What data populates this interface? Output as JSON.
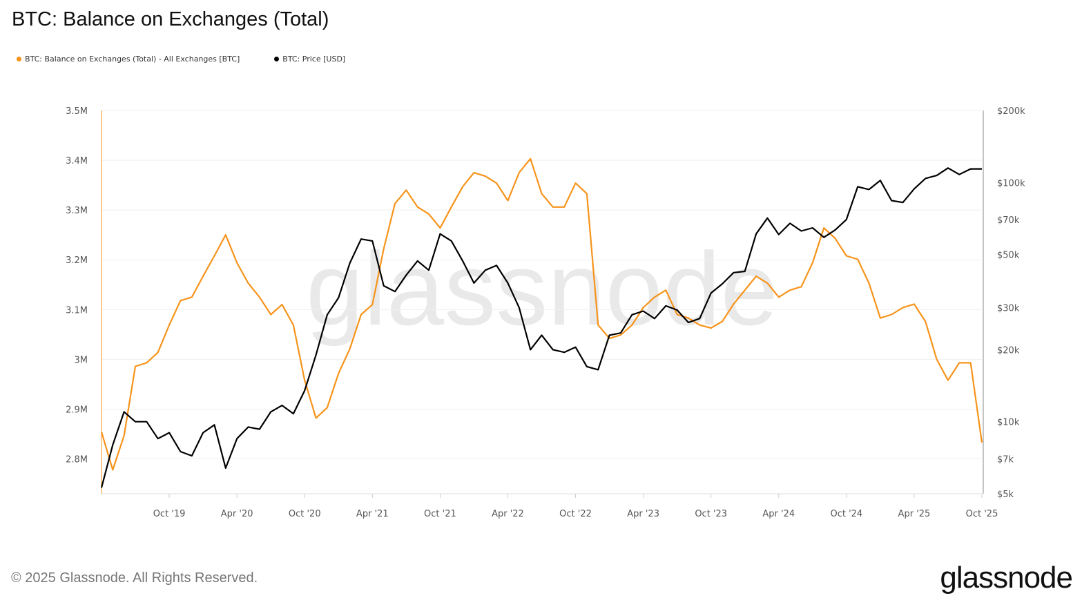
{
  "chart_data": {
    "type": "line",
    "title": "BTC: Balance on Exchanges (Total)",
    "grid": true,
    "legend_placement": "top-left",
    "x": [
      "2019-04",
      "2019-05",
      "2019-06",
      "2019-07",
      "2019-08",
      "2019-09",
      "2019-10",
      "2019-11",
      "2019-12",
      "2020-01",
      "2020-02",
      "2020-03",
      "2020-04",
      "2020-05",
      "2020-06",
      "2020-07",
      "2020-08",
      "2020-09",
      "2020-10",
      "2020-11",
      "2020-12",
      "2021-01",
      "2021-02",
      "2021-03",
      "2021-04",
      "2021-05",
      "2021-06",
      "2021-07",
      "2021-08",
      "2021-09",
      "2021-10",
      "2021-11",
      "2021-12",
      "2022-01",
      "2022-02",
      "2022-03",
      "2022-04",
      "2022-05",
      "2022-06",
      "2022-07",
      "2022-08",
      "2022-09",
      "2022-10",
      "2022-11",
      "2022-12",
      "2023-01",
      "2023-02",
      "2023-03",
      "2023-04",
      "2023-05",
      "2023-06",
      "2023-07",
      "2023-08",
      "2023-09",
      "2023-10",
      "2023-11",
      "2023-12",
      "2024-01",
      "2024-02",
      "2024-03",
      "2024-04",
      "2024-05",
      "2024-06",
      "2024-07",
      "2024-08",
      "2024-09",
      "2024-10",
      "2024-11",
      "2024-12",
      "2025-01",
      "2025-02",
      "2025-03",
      "2025-04",
      "2025-05",
      "2025-06",
      "2025-07",
      "2025-08",
      "2025-09",
      "2025-10"
    ],
    "x_tick_labels": [
      "Oct '19",
      "Apr '20",
      "Oct '20",
      "Apr '21",
      "Oct '21",
      "Apr '22",
      "Oct '22",
      "Apr '23",
      "Oct '23",
      "Apr '24",
      "Oct '24",
      "Apr '25",
      "Oct '25"
    ],
    "x_tick_dates": [
      "2019-10",
      "2020-04",
      "2020-10",
      "2021-04",
      "2021-10",
      "2022-04",
      "2022-10",
      "2023-04",
      "2023-10",
      "2024-04",
      "2024-10",
      "2025-04",
      "2025-10"
    ],
    "y_left": {
      "scale": "linear",
      "range": [
        2730000,
        3500000
      ],
      "ticks": [
        3500000,
        3400000,
        3300000,
        3200000,
        3100000,
        3000000,
        2900000,
        2800000
      ],
      "tick_labels": [
        "3.5M",
        "3.4M",
        "3.3M",
        "3.2M",
        "3.1M",
        "3M",
        "2.9M",
        "2.8M"
      ]
    },
    "y_right": {
      "scale": "log",
      "range": [
        5000,
        200000
      ],
      "ticks": [
        200000,
        100000,
        70000,
        50000,
        30000,
        20000,
        10000,
        7000,
        5000
      ],
      "tick_labels": [
        "$200k",
        "$100k",
        "$70k",
        "$50k",
        "$30k",
        "$20k",
        "$10k",
        "$7k",
        "$5k"
      ]
    },
    "series": [
      {
        "name": "BTC: Balance on Exchanges (Total) - All Exchanges [BTC]",
        "axis": "left",
        "color": "#f7931a",
        "values": [
          2854000,
          2778000,
          2847000,
          2986000,
          2993000,
          3014000,
          3069000,
          3118000,
          3125000,
          3167000,
          3208000,
          3250000,
          3194000,
          3153000,
          3125000,
          3090000,
          3110000,
          3069000,
          2958000,
          2882000,
          2903000,
          2972000,
          3021000,
          3090000,
          3110000,
          3222000,
          3313000,
          3340000,
          3306000,
          3292000,
          3264000,
          3306000,
          3347000,
          3375000,
          3368000,
          3354000,
          3319000,
          3375000,
          3403000,
          3333000,
          3306000,
          3306000,
          3354000,
          3333000,
          3069000,
          3042000,
          3049000,
          3069000,
          3104000,
          3125000,
          3139000,
          3090000,
          3083000,
          3069000,
          3063000,
          3076000,
          3111000,
          3139000,
          3167000,
          3153000,
          3125000,
          3139000,
          3146000,
          3194000,
          3264000,
          3243000,
          3208000,
          3201000,
          3153000,
          3083000,
          3090000,
          3104000,
          3111000,
          3076000,
          3000000,
          2958000,
          2993000,
          2993000,
          2833000
        ]
      },
      {
        "name": "BTC: Price [USD]",
        "axis": "right",
        "color": "#000000",
        "values": [
          5300,
          8000,
          11000,
          10000,
          10000,
          8500,
          9000,
          7500,
          7200,
          9000,
          9700,
          6400,
          8500,
          9500,
          9300,
          11000,
          11700,
          10800,
          13500,
          19000,
          28000,
          33000,
          46000,
          58000,
          57000,
          37000,
          35000,
          41000,
          47000,
          43000,
          61000,
          57000,
          47000,
          38000,
          43000,
          45000,
          38000,
          30000,
          20000,
          23000,
          20000,
          19500,
          20500,
          17000,
          16500,
          23000,
          23500,
          28000,
          29000,
          27000,
          30500,
          29300,
          26000,
          27000,
          34500,
          37700,
          42000,
          42500,
          61000,
          71000,
          60600,
          67500,
          62700,
          64600,
          59000,
          63300,
          70000,
          96000,
          93500,
          102000,
          84000,
          82500,
          94000,
          104000,
          107000,
          115000,
          108000,
          114000,
          114000
        ]
      }
    ]
  },
  "footer": {
    "copyright": "© 2025 Glassnode. All Rights Reserved.",
    "logo_text": "glassnode",
    "watermark": "glassnode"
  }
}
